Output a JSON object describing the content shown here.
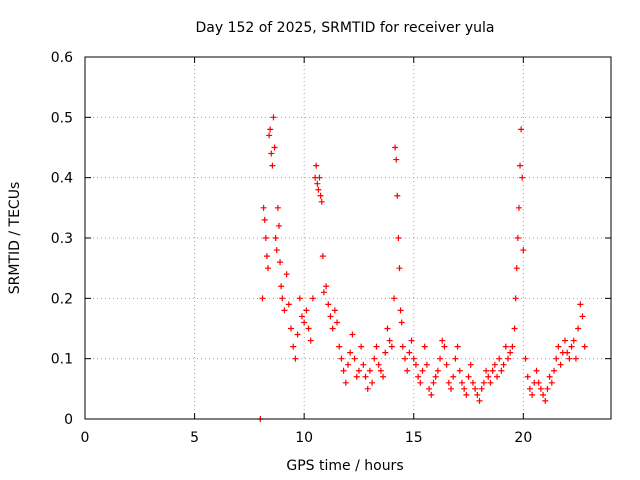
{
  "chart_data": {
    "type": "scatter",
    "title": "Day 152 of 2025, SRMTID for receiver yula",
    "xlabel": "GPS time / hours",
    "ylabel": "SRMTID / TECUs",
    "xlim": [
      0,
      24
    ],
    "ylim": [
      0,
      0.6
    ],
    "grid": true,
    "x_ticks": [
      0,
      5,
      10,
      15,
      20
    ],
    "x_tick_labels": [
      "0",
      "5",
      "10",
      "15",
      "20"
    ],
    "y_ticks": [
      0,
      0.1,
      0.2,
      0.3,
      0.4,
      0.5,
      0.6
    ],
    "y_tick_labels": [
      "0",
      "0.1",
      "0.2",
      "0.3",
      "0.4",
      "0.5",
      "0.6"
    ],
    "marker": "+",
    "color": "#ff0000",
    "series": [
      {
        "name": "yula",
        "x": [
          8.0,
          8.1,
          8.15,
          8.2,
          8.25,
          8.3,
          8.35,
          8.4,
          8.45,
          8.5,
          8.55,
          8.6,
          8.65,
          8.7,
          8.75,
          8.8,
          8.85,
          8.9,
          8.95,
          9.0,
          9.1,
          9.2,
          9.3,
          9.4,
          9.5,
          9.6,
          9.7,
          9.8,
          9.9,
          10.0,
          10.1,
          10.2,
          10.3,
          10.4,
          10.5,
          10.55,
          10.6,
          10.65,
          10.7,
          10.75,
          10.8,
          10.85,
          10.9,
          11.0,
          11.1,
          11.2,
          11.3,
          11.4,
          11.5,
          11.6,
          11.7,
          11.8,
          11.9,
          12.0,
          12.1,
          12.2,
          12.3,
          12.4,
          12.5,
          12.6,
          12.7,
          12.8,
          12.9,
          13.0,
          13.1,
          13.2,
          13.3,
          13.4,
          13.5,
          13.6,
          13.7,
          13.8,
          13.9,
          14.0,
          14.1,
          14.15,
          14.2,
          14.25,
          14.3,
          14.35,
          14.4,
          14.45,
          14.5,
          14.6,
          14.7,
          14.8,
          14.9,
          15.0,
          15.1,
          15.2,
          15.3,
          15.4,
          15.5,
          15.6,
          15.7,
          15.8,
          15.9,
          16.0,
          16.1,
          16.2,
          16.3,
          16.4,
          16.5,
          16.6,
          16.7,
          16.8,
          16.9,
          17.0,
          17.1,
          17.2,
          17.3,
          17.4,
          17.5,
          17.6,
          17.7,
          17.8,
          17.9,
          18.0,
          18.1,
          18.2,
          18.3,
          18.4,
          18.5,
          18.6,
          18.7,
          18.8,
          18.9,
          19.0,
          19.1,
          19.2,
          19.3,
          19.4,
          19.5,
          19.6,
          19.65,
          19.7,
          19.75,
          19.8,
          19.85,
          19.9,
          19.95,
          20.0,
          20.1,
          20.2,
          20.3,
          20.4,
          20.5,
          20.6,
          20.7,
          20.8,
          20.9,
          21.0,
          21.1,
          21.2,
          21.3,
          21.4,
          21.5,
          21.6,
          21.7,
          21.8,
          21.9,
          22.0,
          22.1,
          22.2,
          22.3,
          22.4,
          22.5,
          22.6,
          22.7,
          22.8
        ],
        "values": [
          0.0,
          0.2,
          0.35,
          0.33,
          0.3,
          0.27,
          0.25,
          0.47,
          0.48,
          0.44,
          0.42,
          0.5,
          0.45,
          0.3,
          0.28,
          0.35,
          0.32,
          0.26,
          0.22,
          0.2,
          0.18,
          0.24,
          0.19,
          0.15,
          0.12,
          0.1,
          0.14,
          0.2,
          0.17,
          0.16,
          0.18,
          0.15,
          0.13,
          0.2,
          0.4,
          0.42,
          0.39,
          0.38,
          0.4,
          0.37,
          0.36,
          0.27,
          0.21,
          0.22,
          0.19,
          0.17,
          0.15,
          0.18,
          0.16,
          0.12,
          0.1,
          0.08,
          0.06,
          0.09,
          0.11,
          0.14,
          0.1,
          0.07,
          0.08,
          0.12,
          0.09,
          0.07,
          0.05,
          0.08,
          0.06,
          0.1,
          0.12,
          0.09,
          0.08,
          0.07,
          0.11,
          0.15,
          0.13,
          0.12,
          0.2,
          0.45,
          0.43,
          0.37,
          0.3,
          0.25,
          0.18,
          0.16,
          0.12,
          0.1,
          0.08,
          0.11,
          0.13,
          0.1,
          0.09,
          0.07,
          0.06,
          0.08,
          0.12,
          0.09,
          0.05,
          0.04,
          0.06,
          0.07,
          0.08,
          0.1,
          0.13,
          0.12,
          0.09,
          0.06,
          0.05,
          0.07,
          0.1,
          0.12,
          0.08,
          0.06,
          0.05,
          0.04,
          0.07,
          0.09,
          0.06,
          0.05,
          0.04,
          0.03,
          0.05,
          0.06,
          0.08,
          0.07,
          0.06,
          0.08,
          0.09,
          0.07,
          0.1,
          0.08,
          0.09,
          0.12,
          0.1,
          0.11,
          0.12,
          0.15,
          0.2,
          0.25,
          0.3,
          0.35,
          0.42,
          0.48,
          0.4,
          0.28,
          0.1,
          0.07,
          0.05,
          0.04,
          0.06,
          0.08,
          0.06,
          0.05,
          0.04,
          0.03,
          0.05,
          0.07,
          0.06,
          0.08,
          0.1,
          0.12,
          0.09,
          0.11,
          0.13,
          0.11,
          0.1,
          0.12,
          0.13,
          0.1,
          0.15,
          0.19,
          0.17,
          0.12
        ]
      }
    ]
  }
}
